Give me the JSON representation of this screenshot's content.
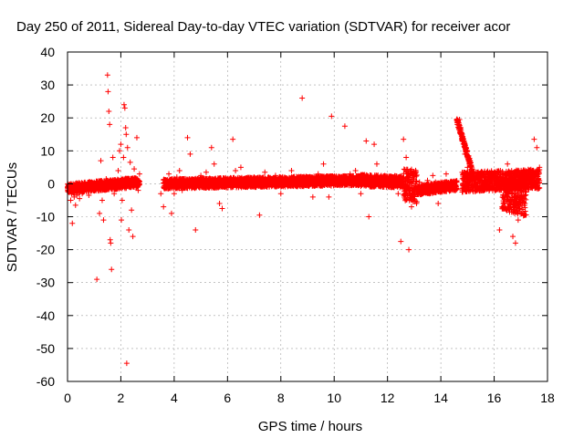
{
  "chart_data": {
    "type": "scatter",
    "title": "Day 250 of 2011, Sidereal Day-to-day VTEC variation (SDTVAR) for receiver acor",
    "xlabel": "GPS time / hours",
    "ylabel": "SDTVAR / TECUs",
    "xlim": [
      0,
      18
    ],
    "ylim": [
      -60,
      40
    ],
    "xticks": [
      0,
      2,
      4,
      6,
      8,
      10,
      12,
      14,
      16,
      18
    ],
    "yticks": [
      -60,
      -50,
      -40,
      -30,
      -20,
      -10,
      0,
      10,
      20,
      30,
      40
    ],
    "grid": true,
    "marker": "+",
    "colors": {
      "series": "#ff0000",
      "grid": "#a0a0a0",
      "frame": "#000000"
    },
    "series": [
      {
        "name": "SDTVAR",
        "points": [
          [
            0.0,
            -1.5
          ],
          [
            0.05,
            -2.5
          ],
          [
            0.1,
            -1.0
          ],
          [
            0.12,
            -5.0
          ],
          [
            0.15,
            -3.0
          ],
          [
            0.18,
            -12.0
          ],
          [
            0.2,
            -2.0
          ],
          [
            0.25,
            -4.0
          ],
          [
            0.3,
            -6.5
          ],
          [
            0.35,
            -3.5
          ],
          [
            0.4,
            -2.0
          ],
          [
            0.45,
            -4.5
          ],
          [
            0.5,
            -1.5
          ],
          [
            0.55,
            -3.0
          ],
          [
            0.6,
            -2.5
          ],
          [
            0.7,
            -1.0
          ],
          [
            0.8,
            -3.5
          ],
          [
            0.9,
            -2.0
          ],
          [
            1.0,
            -0.5
          ],
          [
            1.05,
            -1.5
          ],
          [
            1.1,
            -29.0
          ],
          [
            1.15,
            -2.0
          ],
          [
            1.2,
            -9.0
          ],
          [
            1.25,
            7.0
          ],
          [
            1.3,
            -5.0
          ],
          [
            1.35,
            -11.0
          ],
          [
            1.4,
            -0.5
          ],
          [
            1.45,
            1.5
          ],
          [
            1.5,
            33.0
          ],
          [
            1.52,
            28.0
          ],
          [
            1.55,
            22.0
          ],
          [
            1.58,
            18.0
          ],
          [
            1.6,
            -17.0
          ],
          [
            1.62,
            -18.0
          ],
          [
            1.65,
            -26.0
          ],
          [
            1.7,
            8.0
          ],
          [
            1.75,
            -3.0
          ],
          [
            1.8,
            0.5
          ],
          [
            1.85,
            -1.0
          ],
          [
            1.9,
            4.0
          ],
          [
            1.95,
            10.0
          ],
          [
            2.0,
            12.0
          ],
          [
            2.02,
            -11.0
          ],
          [
            2.05,
            -5.0
          ],
          [
            2.1,
            8.0
          ],
          [
            2.12,
            24.0
          ],
          [
            2.15,
            23.0
          ],
          [
            2.18,
            17.0
          ],
          [
            2.2,
            15.0
          ],
          [
            2.22,
            -54.5
          ],
          [
            2.25,
            11.0
          ],
          [
            2.3,
            -14.0
          ],
          [
            2.35,
            6.5
          ],
          [
            2.4,
            -8.0
          ],
          [
            2.45,
            -16.0
          ],
          [
            2.5,
            4.5
          ],
          [
            2.55,
            1.0
          ],
          [
            2.6,
            14.0
          ],
          [
            2.65,
            -2.0
          ],
          [
            2.7,
            3.0
          ],
          [
            3.5,
            -3.0
          ],
          [
            3.6,
            -7.0
          ],
          [
            3.7,
            1.0
          ],
          [
            3.8,
            3.0
          ],
          [
            3.9,
            -9.0
          ],
          [
            4.0,
            -3.0
          ],
          [
            4.1,
            2.0
          ],
          [
            4.2,
            4.0
          ],
          [
            4.3,
            -2.0
          ],
          [
            4.4,
            0.5
          ],
          [
            4.5,
            14.0
          ],
          [
            4.6,
            9.0
          ],
          [
            4.7,
            -1.0
          ],
          [
            4.8,
            -14.0
          ],
          [
            4.9,
            1.5
          ],
          [
            5.0,
            2.5
          ],
          [
            5.1,
            -0.5
          ],
          [
            5.2,
            3.5
          ],
          [
            5.3,
            1.0
          ],
          [
            5.4,
            11.0
          ],
          [
            5.5,
            6.0
          ],
          [
            5.6,
            0.5
          ],
          [
            5.7,
            -6.0
          ],
          [
            5.8,
            -7.5
          ],
          [
            6.0,
            1.0
          ],
          [
            6.2,
            13.5
          ],
          [
            6.3,
            4.0
          ],
          [
            6.4,
            1.5
          ],
          [
            6.5,
            5.0
          ],
          [
            6.7,
            0.5
          ],
          [
            7.0,
            2.0
          ],
          [
            7.2,
            -9.5
          ],
          [
            7.4,
            3.5
          ],
          [
            7.6,
            1.0
          ],
          [
            7.8,
            2.5
          ],
          [
            8.0,
            -3.0
          ],
          [
            8.2,
            1.5
          ],
          [
            8.4,
            4.0
          ],
          [
            8.6,
            0.5
          ],
          [
            8.8,
            26.0
          ],
          [
            9.0,
            2.0
          ],
          [
            9.2,
            -4.0
          ],
          [
            9.4,
            3.0
          ],
          [
            9.6,
            6.0
          ],
          [
            9.8,
            -4.0
          ],
          [
            9.9,
            20.5
          ],
          [
            10.0,
            2.0
          ],
          [
            10.2,
            1.0
          ],
          [
            10.4,
            17.5
          ],
          [
            10.6,
            3.0
          ],
          [
            10.8,
            4.0
          ],
          [
            11.0,
            -3.0
          ],
          [
            11.2,
            13.0
          ],
          [
            11.3,
            -10.0
          ],
          [
            11.5,
            12.0
          ],
          [
            11.6,
            6.0
          ],
          [
            11.8,
            2.0
          ],
          [
            12.0,
            1.5
          ],
          [
            12.2,
            0.5
          ],
          [
            12.4,
            -3.0
          ],
          [
            12.5,
            -17.5
          ],
          [
            12.6,
            13.5
          ],
          [
            12.7,
            8.0
          ],
          [
            12.8,
            -20.0
          ],
          [
            12.9,
            -7.0
          ],
          [
            13.0,
            1.5
          ],
          [
            13.2,
            0.5
          ],
          [
            13.4,
            -2.0
          ],
          [
            13.5,
            1.0
          ],
          [
            13.7,
            2.5
          ],
          [
            13.8,
            0.5
          ],
          [
            13.9,
            -6.0
          ],
          [
            14.0,
            0.5
          ],
          [
            14.2,
            3.0
          ],
          [
            14.5,
            -1.0
          ],
          [
            14.7,
            19.5
          ],
          [
            14.75,
            17.0
          ],
          [
            14.8,
            13.0
          ],
          [
            14.9,
            9.0
          ],
          [
            15.0,
            5.0
          ],
          [
            15.2,
            3.5
          ],
          [
            15.5,
            2.0
          ],
          [
            15.8,
            1.0
          ],
          [
            16.0,
            1.5
          ],
          [
            16.2,
            -14.0
          ],
          [
            16.3,
            -7.0
          ],
          [
            16.4,
            0.0
          ],
          [
            16.5,
            6.0
          ],
          [
            16.7,
            -16.0
          ],
          [
            16.8,
            -18.0
          ],
          [
            16.9,
            -11.0
          ],
          [
            17.0,
            -6.0
          ],
          [
            17.2,
            2.0
          ],
          [
            17.4,
            1.0
          ],
          [
            17.5,
            13.5
          ],
          [
            17.6,
            11.0
          ],
          [
            17.7,
            5.0
          ]
        ],
        "dense_bands": [
          {
            "x": [
              0.0,
              2.7
            ],
            "y_center": [
              -1.5,
              0.5
            ],
            "y_halfwidth": 1.5
          },
          {
            "x": [
              3.6,
              11.0
            ],
            "y_center": [
              0.0,
              1.0
            ],
            "y_halfwidth": 1.5
          },
          {
            "x": [
              11.0,
              12.6
            ],
            "y_center": [
              1.0,
              0.5
            ],
            "y_halfwidth": 1.8
          },
          {
            "x": [
              12.6,
              13.1
            ],
            "y_center": [
              0.0,
              -1.0
            ],
            "y_halfwidth": 5.0
          },
          {
            "x": [
              13.1,
              14.6
            ],
            "y_center": [
              -2.0,
              -0.5
            ],
            "y_halfwidth": 1.5
          },
          {
            "x": [
              14.6,
              15.2
            ],
            "y_center": [
              19.5,
              3.5
            ],
            "y_halfwidth": 1.0
          },
          {
            "x": [
              14.8,
              17.7
            ],
            "y_center": [
              0.5,
              1.5
            ],
            "y_halfwidth": 3.0
          },
          {
            "x": [
              16.3,
              17.2
            ],
            "y_center": [
              -3.0,
              -5.0
            ],
            "y_halfwidth": 5.0
          }
        ]
      }
    ]
  }
}
